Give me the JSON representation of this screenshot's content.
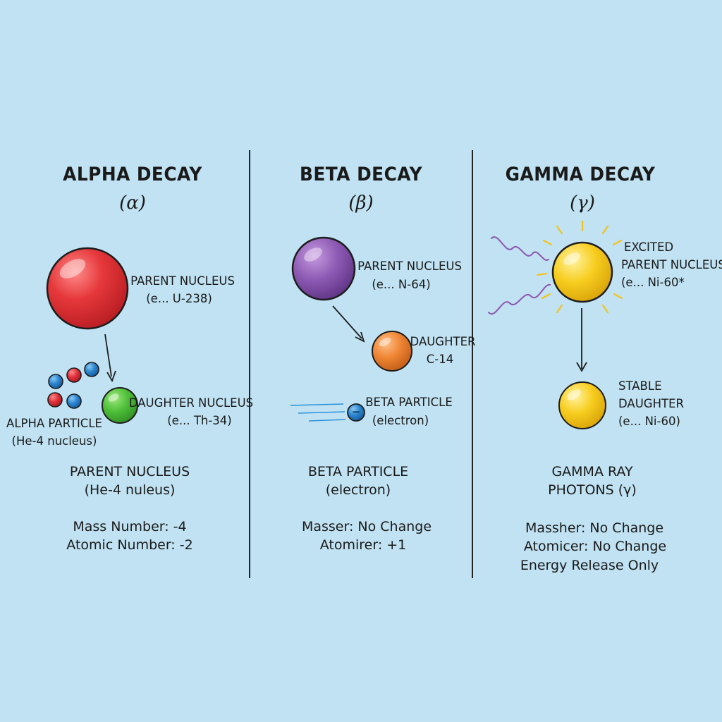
{
  "colors": {
    "background": "#c0e2f2",
    "divider": "#222222",
    "alpha_parent": "#e33a3c",
    "alpha_daughter": "#4fbf3a",
    "proton": "#e0303a",
    "neutron": "#2a86d0",
    "beta_parent": "#8e5bb4",
    "beta_daughter": "#ee8534",
    "electron": "#2a92dc",
    "gamma_nucleus": "#f7cd1e",
    "gamma_rays": "#8c57b0"
  },
  "alpha": {
    "title": "ALPHA DECAY",
    "symbol": "(α)",
    "parent_label": "PARENT NUCLEUS",
    "parent_example": "(e... U-238)",
    "daughter_label": "DAUGHTER NUCLEUS",
    "daughter_example": "(e... Th-34)",
    "particle_label": "ALPHA PARTICLE",
    "particle_note": "(He-4 nucleus)",
    "summary_head": "PARENT NUCLEUS",
    "summary_sub": "(He-4 nuleus)",
    "mass_change": "Mass Number: -4",
    "atomic_change": "Atomic Number: -2"
  },
  "beta": {
    "title": "BETA DECAY",
    "symbol": "(β)",
    "parent_label": "PARENT NUCLEUS",
    "parent_example": "(e... N-64)",
    "daughter_label": "DAUGHTER",
    "daughter_example": "C-14",
    "electron_sign": "−",
    "particle_label": "BETA PARTICLE",
    "particle_note": "(electron)",
    "summary_head": "BETA PARTICLE",
    "summary_sub": "(electron)",
    "mass_change": "Masser: No Change",
    "atomic_change": "Atomirer: +1"
  },
  "gamma": {
    "title": "GAMMA DECAY",
    "symbol": "(γ)",
    "excited_label_1": "EXCITED",
    "excited_label_2": "PARENT NUCLEUS",
    "excited_example": "(e... Ni-60*",
    "stable_label_1": "STABLE",
    "stable_label_2": "DAUGHTER",
    "stable_example": "(e... Ni-60)",
    "summary_head": "GAMMA RAY",
    "summary_sub": "PHOTONS (γ)",
    "mass_change": "Massher: No Change",
    "atomic_change": "Atomicer: No Change",
    "energy_note": "Energy Release Only"
  }
}
